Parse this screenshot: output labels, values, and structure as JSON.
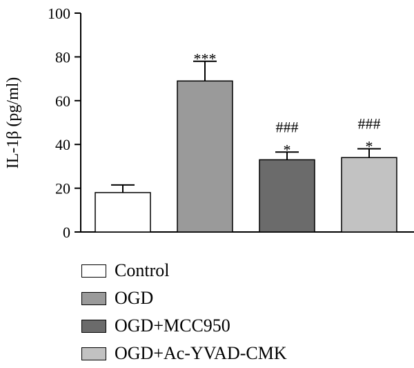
{
  "chart_data": {
    "type": "bar",
    "title": "",
    "xlabel": "",
    "ylabel": "IL-1β (pg/ml)",
    "ylim": [
      0,
      100
    ],
    "yticks": [
      0,
      20,
      40,
      60,
      80,
      100
    ],
    "grid": false,
    "legend_position": "bottom",
    "categories": [
      "Control",
      "OGD",
      "OGD+MCC950",
      "OGD+Ac-YVAD-CMK"
    ],
    "values": [
      18,
      69,
      33,
      34
    ],
    "errors": [
      3.5,
      9,
      3.5,
      4
    ],
    "colors": [
      "#ffffff",
      "#9a9a9a",
      "#6b6b6b",
      "#c2c2c2"
    ],
    "annotations": [
      [],
      [
        "***"
      ],
      [
        "###",
        "*"
      ],
      [
        "###",
        "*"
      ]
    ]
  }
}
